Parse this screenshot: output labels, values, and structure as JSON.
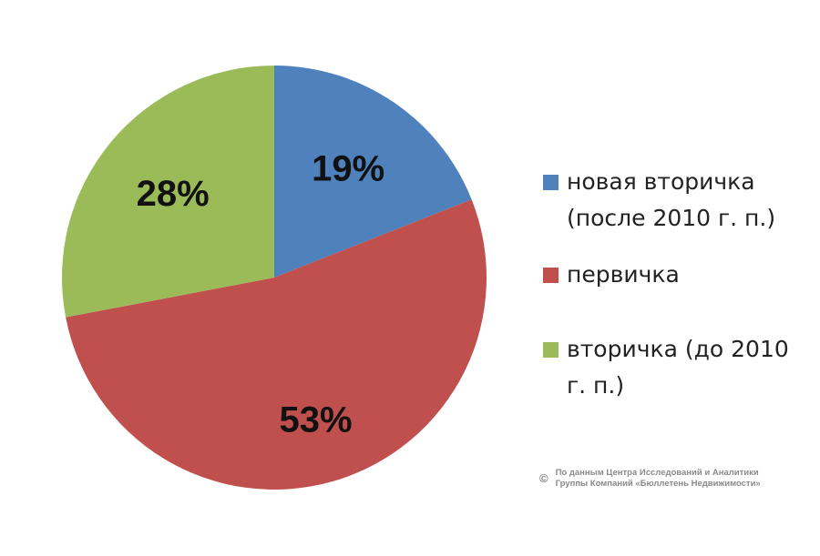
{
  "chart_data": {
    "type": "pie",
    "title": "",
    "start_angle_deg": 0,
    "direction": "clockwise",
    "slices": [
      {
        "label": "новая вторичка (после 2010 г. п.)",
        "value": 19,
        "display": "19%",
        "color": "#4F81BD"
      },
      {
        "label": "первичка",
        "value": 53,
        "display": "53%",
        "color": "#C0504D"
      },
      {
        "label": "вторичка (до 2010 г. п.)",
        "value": 28,
        "display": "28%",
        "color": "#9BBB59"
      }
    ],
    "legend_position": "right"
  },
  "legend": {
    "items": [
      {
        "text": "новая вторичка (после 2010 г. п.)",
        "color": "#4F81BD"
      },
      {
        "text": "первичка",
        "color": "#C0504D"
      },
      {
        "text": "вторичка (до 2010 г. п.)",
        "color": "#9BBB59"
      }
    ]
  },
  "credit": {
    "symbol": "©",
    "line1": "По данным Центра Исследований и Аналитики",
    "line2": "Группы Компаний «Бюллетень Недвижимости»"
  }
}
